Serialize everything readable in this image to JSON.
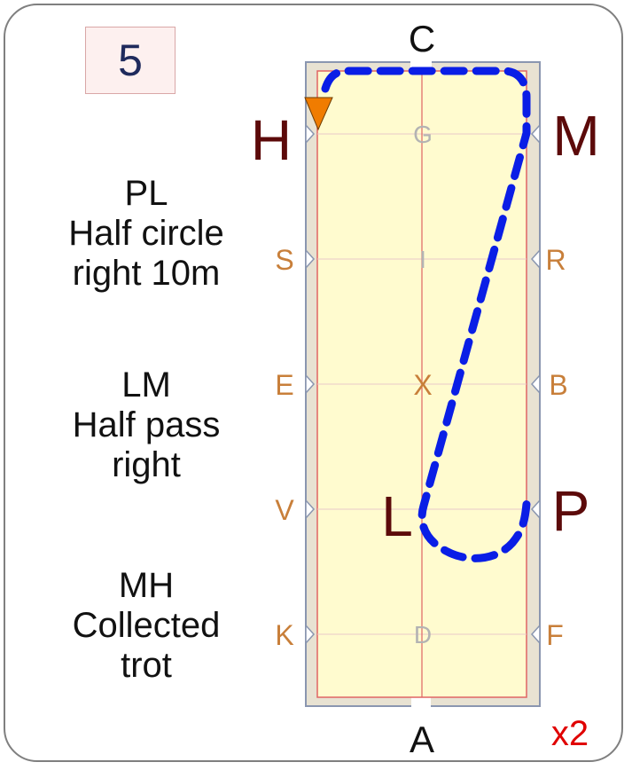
{
  "test_number": "5",
  "movements": [
    {
      "letters": "PL",
      "line1": "Half circle",
      "line2": "right 10m"
    },
    {
      "letters": "LM",
      "line1": "Half pass",
      "line2": "right"
    },
    {
      "letters": "MH",
      "line1": "Collected",
      "line2": "trot"
    }
  ],
  "arena": {
    "end_letters": {
      "top": "C",
      "bottom": "A"
    },
    "corner_letters": {
      "H": "H",
      "M": "M",
      "L": "L",
      "P": "P"
    },
    "left_letters": [
      "S",
      "E",
      "V",
      "K"
    ],
    "right_letters": [
      "R",
      "B",
      "F"
    ],
    "center_letters": [
      "G",
      "I",
      "X",
      "D"
    ]
  },
  "repeat_label": "x2",
  "colors": {
    "arena_fill": "#fffbcf",
    "path": "#0a1ee6",
    "start_marker": "#f07c00",
    "big_letter": "#5c0a0a",
    "side_letter": "#c87f3a"
  },
  "icons": {
    "start_marker": "orange-triangle"
  }
}
